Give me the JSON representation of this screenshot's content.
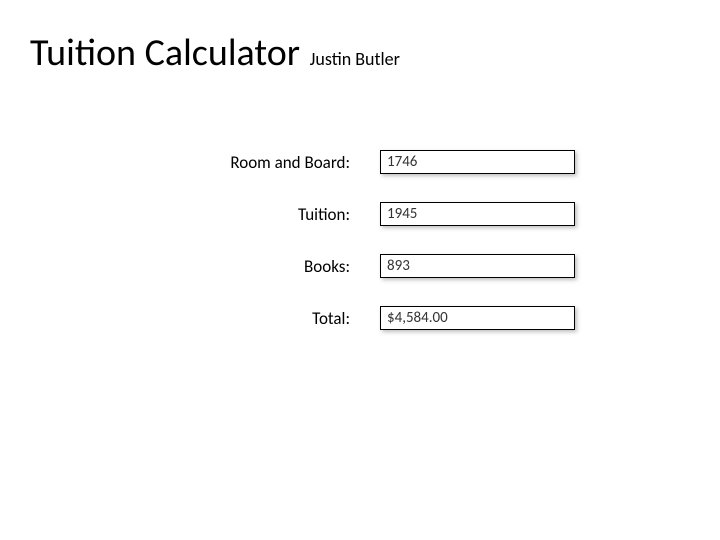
{
  "header": {
    "title": "Tuition Calculator",
    "subtitle": "Justin Butler"
  },
  "form": {
    "rows": [
      {
        "label": "Room and Board:",
        "value": "1746"
      },
      {
        "label": "Tuition:",
        "value": "1945"
      },
      {
        "label": "Books:",
        "value": "893"
      },
      {
        "label": "Total:",
        "value": "$4,584.00"
      }
    ]
  },
  "style": {
    "background_color": "#ffffff",
    "text_color": "#000000",
    "field_border_color": "#000000",
    "field_shadow": "2px 2px 4px rgba(0,0,0,0.25)",
    "title_fontsize": 38,
    "subtitle_fontsize": 18,
    "label_fontsize": 17,
    "field_fontsize": 15,
    "field_width": 195,
    "field_height": 24
  }
}
